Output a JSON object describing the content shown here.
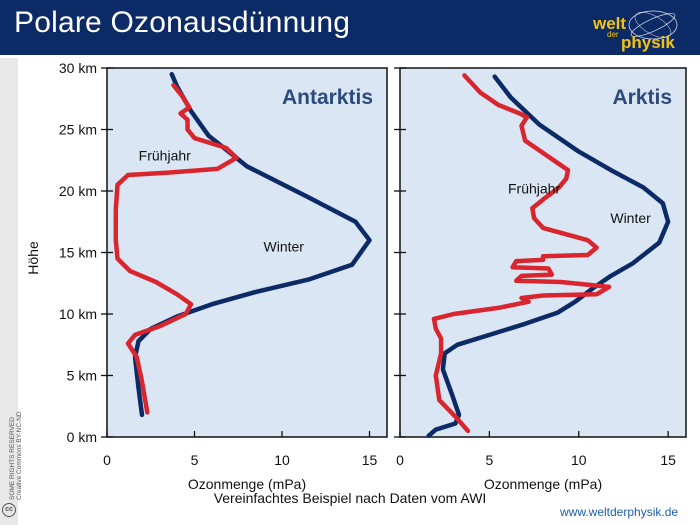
{
  "header": {
    "title": "Polare Ozonausdünnung",
    "logo": {
      "line1": "welt",
      "line2": "der",
      "line3": "physik"
    }
  },
  "license": {
    "line1": "SOME RIGHTS RESERVED",
    "line2": "Creative Commons BY-NC-ND",
    "badge": "cc"
  },
  "footer": {
    "note": "Vereinfachtes Beispiel nach Daten vom AWI",
    "website": "www.weltderphysik.de"
  },
  "colors": {
    "header_bg": "#0c2a66",
    "panel_bg": "#dbe6f4",
    "winter": "#0c2a66",
    "spring": "#d9262e",
    "accent_title": "#2b4a7e"
  },
  "chart_data": [
    {
      "type": "line",
      "title": "Antarktis",
      "xlabel": "Ozonmenge (mPa)",
      "ylabel": "Höhe",
      "xlim": [
        0,
        16
      ],
      "ylim": [
        0,
        30
      ],
      "xticks": [
        0,
        5,
        10,
        15
      ],
      "yticks": [
        0,
        5,
        10,
        15,
        20,
        25,
        30
      ],
      "ytick_labels": [
        "0 km",
        "5 km",
        "10 km",
        "15 km",
        "20 km",
        "25 km",
        "30 km"
      ],
      "series": [
        {
          "name": "Winter",
          "points": [
            [
              2.0,
              1.8
            ],
            [
              1.8,
              4.0
            ],
            [
              1.6,
              6.5
            ],
            [
              1.8,
              7.8
            ],
            [
              2.5,
              8.8
            ],
            [
              4.0,
              9.8
            ],
            [
              6.0,
              10.8
            ],
            [
              8.5,
              11.8
            ],
            [
              11.5,
              12.8
            ],
            [
              14.0,
              14.0
            ],
            [
              15.0,
              16.0
            ],
            [
              14.2,
              17.5
            ],
            [
              11.5,
              19.5
            ],
            [
              8.0,
              22.0
            ],
            [
              5.8,
              24.5
            ],
            [
              4.8,
              26.5
            ],
            [
              4.0,
              28.5
            ],
            [
              3.7,
              29.5
            ]
          ]
        },
        {
          "name": "Frühjahr",
          "points": [
            [
              2.3,
              2.0
            ],
            [
              2.0,
              4.5
            ],
            [
              1.7,
              6.5
            ],
            [
              1.2,
              7.6
            ],
            [
              1.6,
              8.3
            ],
            [
              3.0,
              9.0
            ],
            [
              4.5,
              10.0
            ],
            [
              4.8,
              10.8
            ],
            [
              4.0,
              11.6
            ],
            [
              2.8,
              12.6
            ],
            [
              1.3,
              13.5
            ],
            [
              0.6,
              14.5
            ],
            [
              0.5,
              16.0
            ],
            [
              0.5,
              18.5
            ],
            [
              0.6,
              20.5
            ],
            [
              1.2,
              21.3
            ],
            [
              3.5,
              21.5
            ],
            [
              6.3,
              21.8
            ],
            [
              7.4,
              22.7
            ],
            [
              6.8,
              23.5
            ],
            [
              5.0,
              24.3
            ],
            [
              4.6,
              25.0
            ],
            [
              4.6,
              25.8
            ],
            [
              4.2,
              26.3
            ],
            [
              4.7,
              26.8
            ],
            [
              4.3,
              27.7
            ],
            [
              3.8,
              28.6
            ]
          ]
        }
      ],
      "annotations": [
        {
          "text": "Frühjahr",
          "x": 3.3,
          "y": 22.9
        },
        {
          "text": "Winter",
          "x": 10.1,
          "y": 15.5
        }
      ],
      "grid": false,
      "legend": "none"
    },
    {
      "type": "line",
      "title": "Arktis",
      "xlabel": "Ozonmenge (mPa)",
      "ylabel": "",
      "xlim": [
        0,
        16
      ],
      "ylim": [
        0,
        30
      ],
      "xticks": [
        0,
        5,
        10,
        15
      ],
      "yticks": [
        0,
        5,
        10,
        15,
        20,
        25,
        30
      ],
      "series": [
        {
          "name": "Winter",
          "points": [
            [
              1.6,
              0.1
            ],
            [
              2.0,
              0.6
            ],
            [
              3.1,
              1.1
            ],
            [
              3.3,
              1.8
            ],
            [
              2.9,
              3.5
            ],
            [
              2.4,
              5.5
            ],
            [
              2.5,
              6.8
            ],
            [
              3.2,
              7.5
            ],
            [
              5.0,
              8.3
            ],
            [
              7.0,
              9.2
            ],
            [
              8.8,
              10.1
            ],
            [
              9.8,
              11.0
            ],
            [
              10.8,
              12.1
            ],
            [
              11.8,
              13.1
            ],
            [
              13.0,
              14.1
            ],
            [
              14.5,
              15.8
            ],
            [
              15.0,
              17.5
            ],
            [
              14.7,
              19.0
            ],
            [
              13.6,
              20.3
            ],
            [
              11.8,
              21.7
            ],
            [
              10.0,
              23.2
            ],
            [
              7.8,
              25.4
            ],
            [
              6.2,
              27.6
            ],
            [
              5.3,
              29.3
            ]
          ]
        },
        {
          "name": "Frühjahr",
          "points": [
            [
              3.8,
              0.5
            ],
            [
              3.2,
              1.5
            ],
            [
              2.2,
              3.0
            ],
            [
              2.0,
              5.0
            ],
            [
              2.3,
              6.8
            ],
            [
              2.3,
              8.0
            ],
            [
              2.0,
              8.8
            ],
            [
              1.9,
              9.6
            ],
            [
              3.0,
              10.0
            ],
            [
              5.5,
              10.5
            ],
            [
              7.2,
              11.0
            ],
            [
              6.8,
              11.3
            ],
            [
              8.0,
              11.5
            ],
            [
              11.0,
              11.6
            ],
            [
              11.7,
              12.2
            ],
            [
              9.0,
              12.6
            ],
            [
              6.5,
              12.7
            ],
            [
              6.8,
              13.1
            ],
            [
              8.5,
              13.2
            ],
            [
              8.3,
              13.7
            ],
            [
              6.3,
              13.8
            ],
            [
              6.5,
              14.3
            ],
            [
              8.0,
              14.4
            ],
            [
              8.0,
              14.7
            ],
            [
              10.5,
              14.8
            ],
            [
              11.0,
              15.4
            ],
            [
              10.5,
              16.0
            ],
            [
              8.0,
              17.0
            ],
            [
              7.5,
              17.8
            ],
            [
              7.4,
              18.6
            ],
            [
              8.0,
              19.3
            ],
            [
              8.9,
              20.3
            ],
            [
              9.3,
              21.0
            ],
            [
              9.4,
              21.7
            ],
            [
              8.3,
              22.8
            ],
            [
              7.0,
              24.1
            ],
            [
              6.8,
              25.3
            ],
            [
              7.1,
              26.0
            ],
            [
              6.7,
              26.3
            ],
            [
              5.5,
              27.0
            ],
            [
              4.5,
              28.0
            ],
            [
              3.6,
              29.4
            ]
          ]
        }
      ],
      "annotations": [
        {
          "text": "Frühjahr",
          "x": 7.5,
          "y": 20.2
        },
        {
          "text": "Winter",
          "x": 12.9,
          "y": 17.8
        }
      ],
      "grid": false,
      "legend": "none"
    }
  ]
}
